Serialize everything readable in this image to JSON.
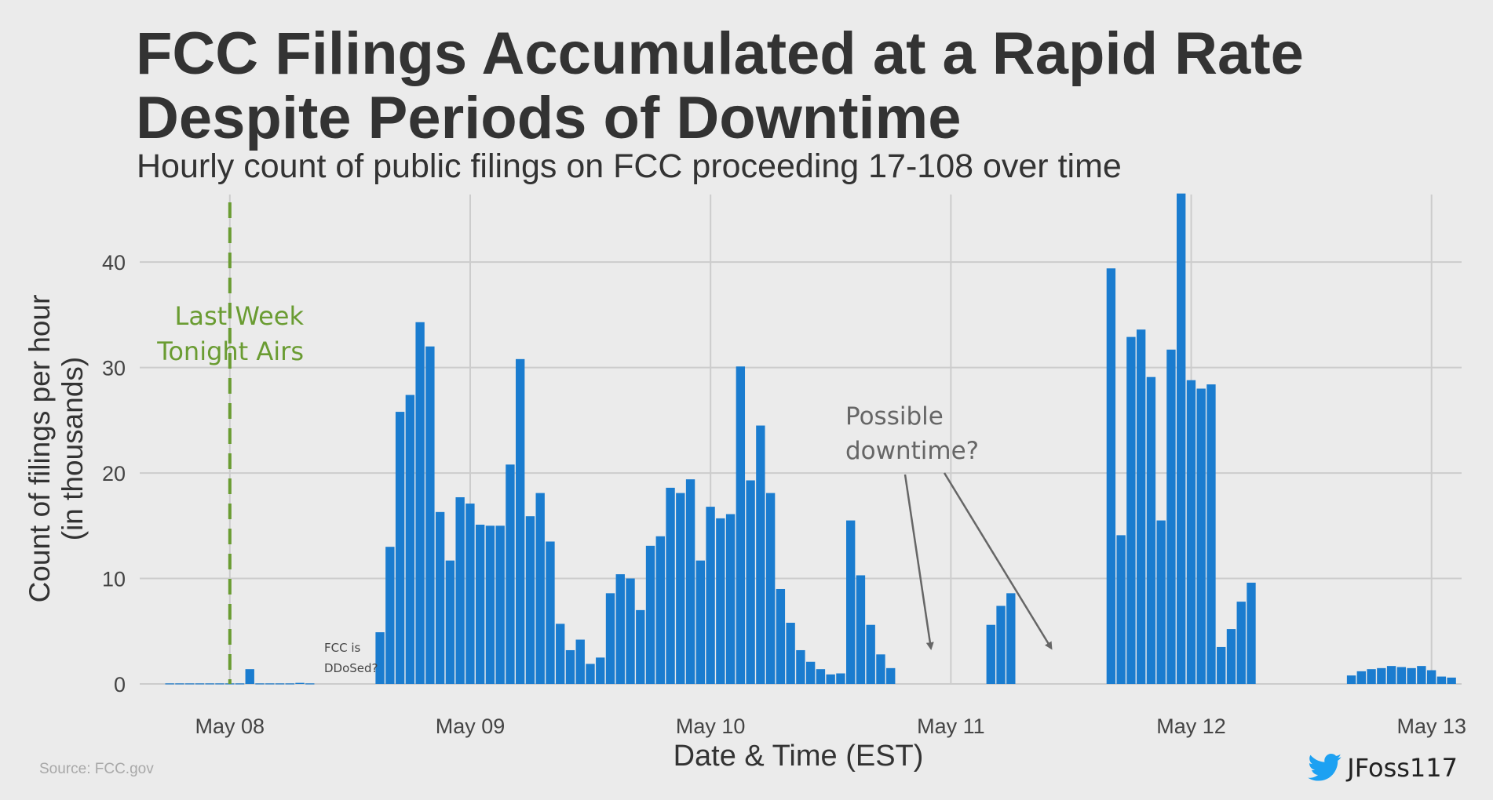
{
  "title_lines": [
    "FCC Filings Accumulated at a Rapid Rate",
    "Despite Periods of Downtime"
  ],
  "subtitle": "Hourly count of public filings on FCC proceeding 17-108 over time",
  "source": "Source: FCC.gov",
  "credit": {
    "handle": "JFoss117",
    "icon": "twitter-bird-icon"
  },
  "colors": {
    "bar": "#1a7ccf",
    "annotation_green": "#6a9c32",
    "annotation_gray": "#666666",
    "grid": "#cccccc",
    "background": "#ebebeb"
  },
  "chart_data": {
    "type": "bar",
    "title": "FCC Filings Accumulated at a Rapid Rate Despite Periods of Downtime",
    "subtitle": "Hourly count of public filings on FCC proceeding 17-108 over time",
    "xlabel": "Date & Time (EST)",
    "ylabel_lines": [
      "Count of filings per hour",
      "(in thousands)"
    ],
    "x_ticks": [
      "May 08",
      "May 09",
      "May 10",
      "May 11",
      "May 12",
      "May 13"
    ],
    "x_unit": "hour",
    "xlim": [
      "2017-05-07T15:00",
      "2017-05-13T03:00"
    ],
    "y_ticks": [
      0,
      10,
      20,
      30,
      40
    ],
    "ylim": [
      0,
      47
    ],
    "grid": true,
    "series": [
      {
        "values_by_hour": [
          [
            "2017-05-07T18:00",
            0.05
          ],
          [
            "2017-05-07T19:00",
            0.05
          ],
          [
            "2017-05-07T20:00",
            0.05
          ],
          [
            "2017-05-07T21:00",
            0.05
          ],
          [
            "2017-05-07T22:00",
            0.05
          ],
          [
            "2017-05-07T23:00",
            0.05
          ],
          [
            "2017-05-08T00:00",
            0.05
          ],
          [
            "2017-05-08T01:00",
            0.05
          ],
          [
            "2017-05-08T02:00",
            1.4
          ],
          [
            "2017-05-08T03:00",
            0.05
          ],
          [
            "2017-05-08T04:00",
            0.05
          ],
          [
            "2017-05-08T05:00",
            0.05
          ],
          [
            "2017-05-08T06:00",
            0.05
          ],
          [
            "2017-05-08T07:00",
            0.1
          ],
          [
            "2017-05-08T08:00",
            0.05
          ],
          [
            "2017-05-08T15:00",
            4.9
          ],
          [
            "2017-05-08T16:00",
            13.0
          ],
          [
            "2017-05-08T17:00",
            25.8
          ],
          [
            "2017-05-08T18:00",
            27.4
          ],
          [
            "2017-05-08T19:00",
            34.3
          ],
          [
            "2017-05-08T20:00",
            32.0
          ],
          [
            "2017-05-08T21:00",
            16.3
          ],
          [
            "2017-05-08T22:00",
            11.7
          ],
          [
            "2017-05-08T23:00",
            17.7
          ],
          [
            "2017-05-09T00:00",
            17.1
          ],
          [
            "2017-05-09T01:00",
            15.1
          ],
          [
            "2017-05-09T02:00",
            15.0
          ],
          [
            "2017-05-09T03:00",
            15.0
          ],
          [
            "2017-05-09T04:00",
            20.8
          ],
          [
            "2017-05-09T05:00",
            30.8
          ],
          [
            "2017-05-09T06:00",
            15.9
          ],
          [
            "2017-05-09T07:00",
            18.1
          ],
          [
            "2017-05-09T08:00",
            13.5
          ],
          [
            "2017-05-09T09:00",
            5.7
          ],
          [
            "2017-05-09T10:00",
            3.2
          ],
          [
            "2017-05-09T11:00",
            4.2
          ],
          [
            "2017-05-09T12:00",
            1.9
          ],
          [
            "2017-05-09T13:00",
            2.5
          ],
          [
            "2017-05-09T14:00",
            8.6
          ],
          [
            "2017-05-09T15:00",
            10.4
          ],
          [
            "2017-05-09T16:00",
            10.0
          ],
          [
            "2017-05-09T17:00",
            7.0
          ],
          [
            "2017-05-09T18:00",
            13.1
          ],
          [
            "2017-05-09T19:00",
            14.0
          ],
          [
            "2017-05-09T20:00",
            18.6
          ],
          [
            "2017-05-09T21:00",
            18.1
          ],
          [
            "2017-05-09T22:00",
            19.4
          ],
          [
            "2017-05-09T23:00",
            11.7
          ],
          [
            "2017-05-10T00:00",
            16.8
          ],
          [
            "2017-05-10T01:00",
            15.7
          ],
          [
            "2017-05-10T02:00",
            16.1
          ],
          [
            "2017-05-10T03:00",
            30.1
          ],
          [
            "2017-05-10T04:00",
            19.3
          ],
          [
            "2017-05-10T05:00",
            24.5
          ],
          [
            "2017-05-10T06:00",
            18.1
          ],
          [
            "2017-05-10T07:00",
            9.0
          ],
          [
            "2017-05-10T08:00",
            5.8
          ],
          [
            "2017-05-10T09:00",
            3.2
          ],
          [
            "2017-05-10T10:00",
            2.1
          ],
          [
            "2017-05-10T11:00",
            1.4
          ],
          [
            "2017-05-10T12:00",
            0.9
          ],
          [
            "2017-05-10T13:00",
            1.0
          ],
          [
            "2017-05-10T14:00",
            15.5
          ],
          [
            "2017-05-10T15:00",
            10.3
          ],
          [
            "2017-05-10T16:00",
            5.6
          ],
          [
            "2017-05-10T17:00",
            2.8
          ],
          [
            "2017-05-10T18:00",
            1.5
          ],
          [
            "2017-05-11T04:00",
            5.6
          ],
          [
            "2017-05-11T05:00",
            7.4
          ],
          [
            "2017-05-11T06:00",
            8.6
          ],
          [
            "2017-05-11T16:00",
            39.4
          ],
          [
            "2017-05-11T17:00",
            14.1
          ],
          [
            "2017-05-11T18:00",
            32.9
          ],
          [
            "2017-05-11T19:00",
            33.6
          ],
          [
            "2017-05-11T20:00",
            29.1
          ],
          [
            "2017-05-11T21:00",
            15.5
          ],
          [
            "2017-05-11T22:00",
            31.7
          ],
          [
            "2017-05-11T23:00",
            46.5
          ],
          [
            "2017-05-12T00:00",
            28.8
          ],
          [
            "2017-05-12T01:00",
            28.0
          ],
          [
            "2017-05-12T02:00",
            28.4
          ],
          [
            "2017-05-12T03:00",
            3.5
          ],
          [
            "2017-05-12T04:00",
            5.2
          ],
          [
            "2017-05-12T05:00",
            7.8
          ],
          [
            "2017-05-12T06:00",
            9.6
          ],
          [
            "2017-05-12T16:00",
            0.8
          ],
          [
            "2017-05-12T17:00",
            1.2
          ],
          [
            "2017-05-12T18:00",
            1.4
          ],
          [
            "2017-05-12T19:00",
            1.5
          ],
          [
            "2017-05-12T20:00",
            1.7
          ],
          [
            "2017-05-12T21:00",
            1.6
          ],
          [
            "2017-05-12T22:00",
            1.5
          ],
          [
            "2017-05-12T23:00",
            1.7
          ],
          [
            "2017-05-13T00:00",
            1.3
          ],
          [
            "2017-05-13T01:00",
            0.7
          ],
          [
            "2017-05-13T02:00",
            0.6
          ]
        ]
      }
    ],
    "annotations": [
      {
        "id": "lwt",
        "lines": [
          "Last Week",
          "Tonight Airs"
        ],
        "x": "2017-05-08T00:00",
        "style": "vertical-dashed-line",
        "color": "green"
      },
      {
        "id": "ddos",
        "lines": [
          "FCC is",
          "DDoSed?"
        ],
        "x": "2017-05-08T00:00"
      },
      {
        "id": "downtime",
        "lines": [
          "Possible",
          "downtime?"
        ],
        "arrows_to": [
          "2017-05-10T22:00",
          "2017-05-11T10:00"
        ]
      }
    ]
  }
}
